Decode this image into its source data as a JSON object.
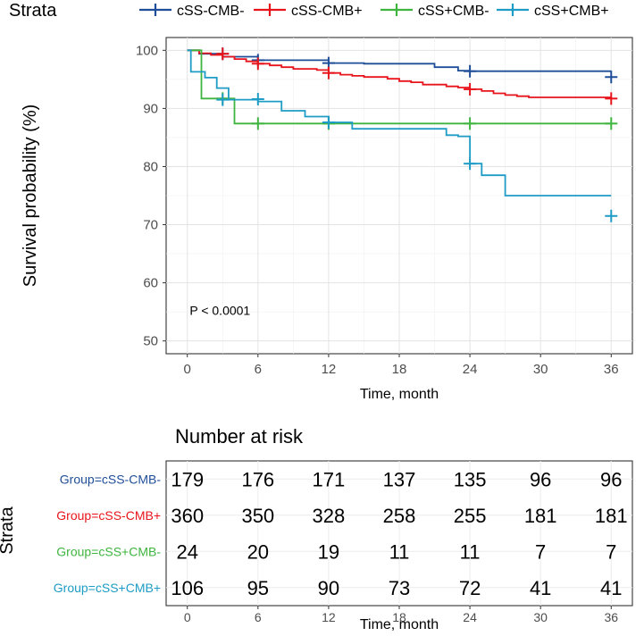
{
  "chart_data": [
    {
      "type": "line",
      "subtype": "kaplan-meier",
      "title": "",
      "legend_title": "Strata",
      "legend_position": "top",
      "xlabel": "Time, month",
      "ylabel": "Survival probability (%)",
      "xlim": [
        -1.8,
        37.8
      ],
      "ylim": [
        47.8,
        102.2
      ],
      "xticks": [
        0,
        6,
        12,
        18,
        24,
        30,
        36
      ],
      "yticks": [
        50,
        60,
        70,
        80,
        90,
        100
      ],
      "xtick_labels": [
        "0",
        "6",
        "12",
        "18",
        "24",
        "30",
        "36"
      ],
      "ytick_labels": [
        "50",
        "60",
        "70",
        "80",
        "90",
        "100"
      ],
      "grid": true,
      "annotation": "P < 0.0001",
      "annotation_pos": [
        0.2,
        54.5
      ],
      "series": [
        {
          "name": "cSS-CMB-",
          "color": "#1F4E98",
          "steps": [
            [
              0,
              100
            ],
            [
              1,
              99.4
            ],
            [
              3,
              98.9
            ],
            [
              6,
              98.3
            ],
            [
              12,
              97.8
            ],
            [
              15,
              97.7
            ],
            [
              21,
              97.1
            ],
            [
              23,
              96.5
            ],
            [
              24,
              96.4
            ],
            [
              36,
              96.4
            ]
          ],
          "end_x": 36,
          "censor": [
            [
              3,
              99.4
            ],
            [
              6,
              98.3
            ],
            [
              12,
              97.8
            ],
            [
              24,
              96.4
            ],
            [
              36,
              95.4
            ]
          ]
        },
        {
          "name": "cSS-CMB+",
          "color": "#E8141B",
          "steps": [
            [
              0,
              100
            ],
            [
              1,
              99.5
            ],
            [
              2,
              99.2
            ],
            [
              3,
              98.9
            ],
            [
              4,
              98.5
            ],
            [
              5,
              98.1
            ],
            [
              6,
              97.7
            ],
            [
              7,
              97.4
            ],
            [
              8,
              97.1
            ],
            [
              9,
              96.8
            ],
            [
              11,
              96.6
            ],
            [
              12,
              96.1
            ],
            [
              13,
              95.8
            ],
            [
              14,
              95.6
            ],
            [
              15,
              95.4
            ],
            [
              17,
              95.1
            ],
            [
              18,
              94.7
            ],
            [
              19,
              94.5
            ],
            [
              20,
              94.1
            ],
            [
              22,
              93.8
            ],
            [
              23,
              93.6
            ],
            [
              24,
              93.3
            ],
            [
              25,
              93.0
            ],
            [
              26,
              92.6
            ],
            [
              27,
              92.3
            ],
            [
              28,
              92.1
            ],
            [
              29,
              91.9
            ],
            [
              36,
              91.9
            ]
          ],
          "end_x": 36,
          "censor": [
            [
              3,
              99.4
            ],
            [
              6,
              97.7
            ],
            [
              12,
              96.1
            ],
            [
              24,
              93.3
            ],
            [
              36,
              91.7
            ]
          ]
        },
        {
          "name": "cSS+CMB-",
          "color": "#3FB53F",
          "steps": [
            [
              0,
              100
            ],
            [
              1.2,
              91.7
            ],
            [
              4,
              87.4
            ],
            [
              36,
              87.4
            ]
          ],
          "end_x": 36,
          "censor": [
            [
              3,
              91.7
            ],
            [
              6,
              87.4
            ],
            [
              12,
              87.4
            ],
            [
              24,
              87.4
            ],
            [
              36,
              87.4
            ]
          ]
        },
        {
          "name": "cSS+CMB+",
          "color": "#1E9CC5",
          "steps": [
            [
              0,
              100
            ],
            [
              0.3,
              96.3
            ],
            [
              1.5,
              95.3
            ],
            [
              2.5,
              93.5
            ],
            [
              3.5,
              91.5
            ],
            [
              6,
              91.2
            ],
            [
              8,
              89.6
            ],
            [
              10,
              88.6
            ],
            [
              12,
              87.6
            ],
            [
              14,
              86.5
            ],
            [
              22,
              85.4
            ],
            [
              23,
              85.2
            ],
            [
              24,
              80.5
            ],
            [
              25,
              78.5
            ],
            [
              27,
              75.0
            ],
            [
              36,
              75.0
            ]
          ],
          "end_x": 36,
          "censor": [
            [
              3,
              91.5
            ],
            [
              6,
              91.6
            ],
            [
              12,
              87.6
            ],
            [
              24,
              80.5
            ],
            [
              36,
              71.5
            ]
          ]
        }
      ]
    },
    {
      "type": "table",
      "title": "Number at risk",
      "ylabel": "Strata",
      "xlabel": "Time, month",
      "xlim": [
        -1.8,
        37.8
      ],
      "xticks": [
        0,
        6,
        12,
        18,
        24,
        30,
        36
      ],
      "xtick_labels": [
        "0",
        "6",
        "12",
        "18",
        "24",
        "30",
        "36"
      ],
      "rows": [
        {
          "label": "Group=cSS-CMB-",
          "color": "#1F4E98",
          "values": [
            "179",
            "176",
            "171",
            "137",
            "135",
            "96",
            "96"
          ]
        },
        {
          "label": "Group=cSS-CMB+",
          "color": "#E8141B",
          "values": [
            "360",
            "350",
            "328",
            "258",
            "255",
            "181",
            "181"
          ]
        },
        {
          "label": "Group=cSS+CMB-",
          "color": "#3FB53F",
          "values": [
            "24",
            "20",
            "19",
            "11",
            "11",
            "7",
            "7"
          ]
        },
        {
          "label": "Group=cSS+CMB+",
          "color": "#1E9CC5",
          "values": [
            "106",
            "95",
            "90",
            "73",
            "72",
            "41",
            "41"
          ]
        }
      ]
    }
  ]
}
